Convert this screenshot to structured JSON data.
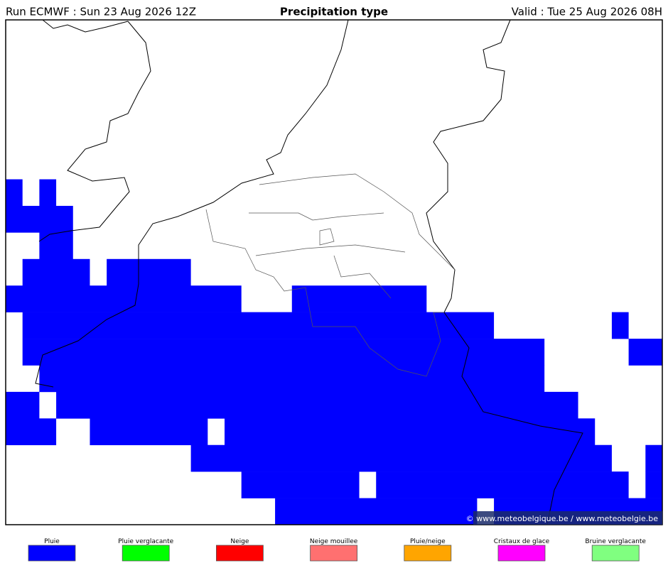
{
  "header": {
    "run": "Run ECMWF : Sun 23 Aug 2026 12Z",
    "title": "Precipitation type",
    "valid": "Valid : Tue 25 Aug 2026 08H"
  },
  "watermark": "© www.meteobelgique.be / www.meteobelgie.be",
  "legend": [
    {
      "label": "Pluie",
      "color": "#0000ff"
    },
    {
      "label": "Pluie verglacante",
      "color": "#00ff00"
    },
    {
      "label": "Neige",
      "color": "#ff0000"
    },
    {
      "label": "Neige mouillee",
      "color": "#ff7070"
    },
    {
      "label": "Pluie/neige",
      "color": "#ffa500"
    },
    {
      "label": "Cristaux de glace",
      "color": "#ff00ff"
    },
    {
      "label": "Bruine verglacante",
      "color": "#80ff80"
    }
  ]
}
